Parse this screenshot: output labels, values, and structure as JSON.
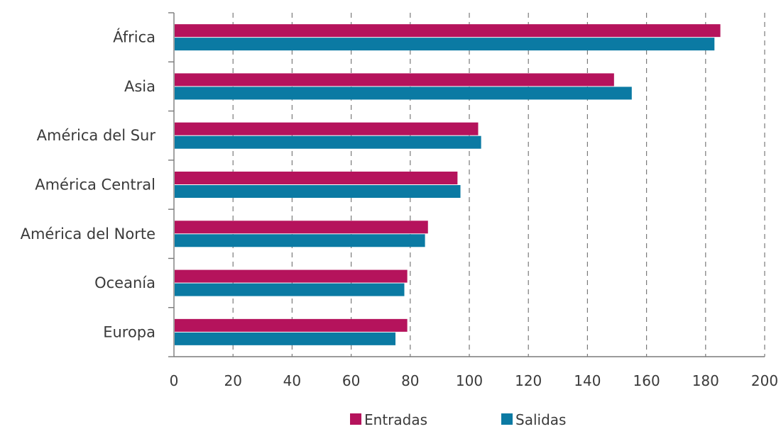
{
  "chart_data": {
    "type": "bar",
    "orientation": "horizontal",
    "categories": [
      "África",
      "Asia",
      "América del Sur",
      "América Central",
      "América del Norte",
      "Oceanía",
      "Europa"
    ],
    "series": [
      {
        "name": "Entradas",
        "color": "#b5135c",
        "values": [
          185,
          149,
          103,
          96,
          86,
          79,
          79
        ]
      },
      {
        "name": "Salidas",
        "color": "#0b7aa3",
        "values": [
          183,
          155,
          104,
          97,
          85,
          78,
          75
        ]
      }
    ],
    "xlim": [
      0,
      200
    ],
    "xticks": [
      0,
      20,
      40,
      60,
      80,
      100,
      120,
      140,
      160,
      180,
      200
    ],
    "grid": "vertical-dashed",
    "legend_position": "bottom"
  }
}
